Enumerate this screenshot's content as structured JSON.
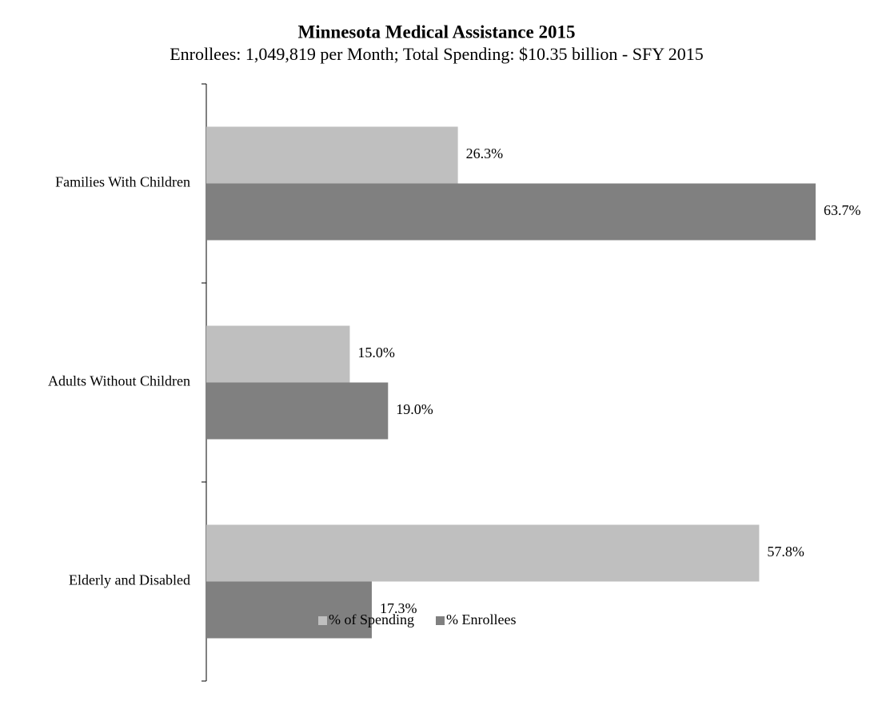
{
  "chart_data": {
    "type": "hbar",
    "title": "Minnesota Medical Assistance 2015",
    "subtitle": "Enrollees: 1,049,819 per Month; Total Spending: $10.35 billion - SFY 2015",
    "categories": [
      "Families With Children",
      "Adults Without Children",
      "Elderly and Disabled"
    ],
    "series": [
      {
        "name": "% of Spending",
        "color": "#bfbfbf",
        "values": [
          26.3,
          15.0,
          57.8
        ],
        "value_labels": [
          "26.3%",
          "15.0%",
          "57.8%"
        ]
      },
      {
        "name": "% Enrollees",
        "color": "#808080",
        "values": [
          63.7,
          19.0,
          17.3
        ],
        "value_labels": [
          "63.7%",
          "19.0%",
          "17.3%"
        ]
      }
    ],
    "legend": "bottom"
  }
}
